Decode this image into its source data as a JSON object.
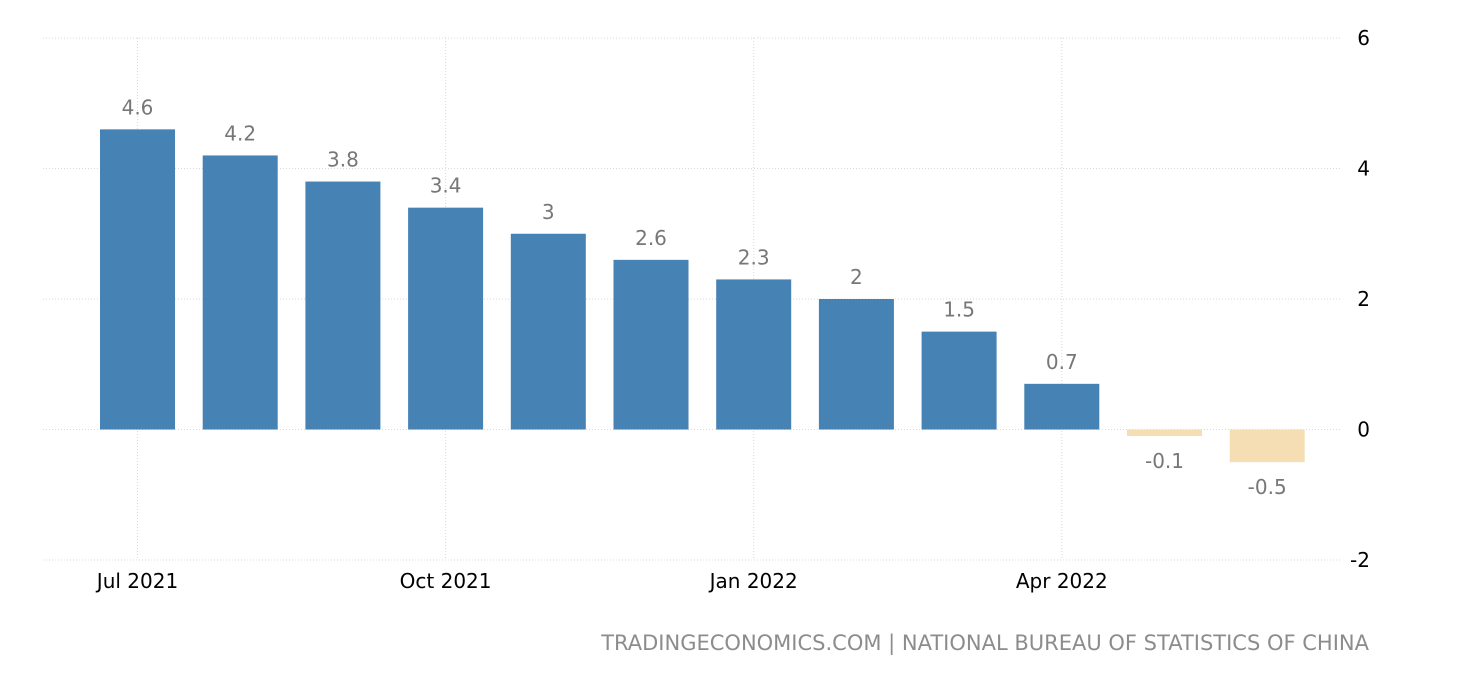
{
  "chart_data": {
    "type": "bar",
    "title": "",
    "xlabel": "",
    "ylabel": "",
    "categories": [
      "Jul 2021",
      "Aug 2021",
      "Sep 2021",
      "Oct 2021",
      "Nov 2021",
      "Dec 2021",
      "Jan 2022",
      "Feb 2022",
      "Mar 2022",
      "Apr 2022",
      "May 2022",
      "Jun 2022"
    ],
    "values": [
      4.6,
      4.2,
      3.8,
      3.4,
      3,
      2.6,
      2.3,
      2,
      1.5,
      0.7,
      -0.1,
      -0.5
    ],
    "value_labels": [
      "4.6",
      "4.2",
      "3.8",
      "3.4",
      "3",
      "2.6",
      "2.3",
      "2",
      "1.5",
      "0.7",
      "-0.1",
      "-0.5"
    ],
    "ylim": [
      -2,
      6
    ],
    "yticks": [
      6,
      4,
      2,
      0,
      -2
    ],
    "ytick_labels": [
      "6",
      "4",
      "2",
      "0",
      "-2"
    ],
    "xtick_labels": [
      {
        "index": 0,
        "label": "Jul 2021"
      },
      {
        "index": 3,
        "label": "Oct 2021"
      },
      {
        "index": 6,
        "label": "Jan 2022"
      },
      {
        "index": 9,
        "label": "Apr 2022"
      }
    ],
    "y_axis_side": "right",
    "grid": true,
    "legend": "none",
    "colors": {
      "positive": "#4682b4",
      "negative": "#f5deb3"
    }
  },
  "footer": {
    "source": "TRADINGECONOMICS.COM | NATIONAL BUREAU OF STATISTICS OF CHINA"
  }
}
